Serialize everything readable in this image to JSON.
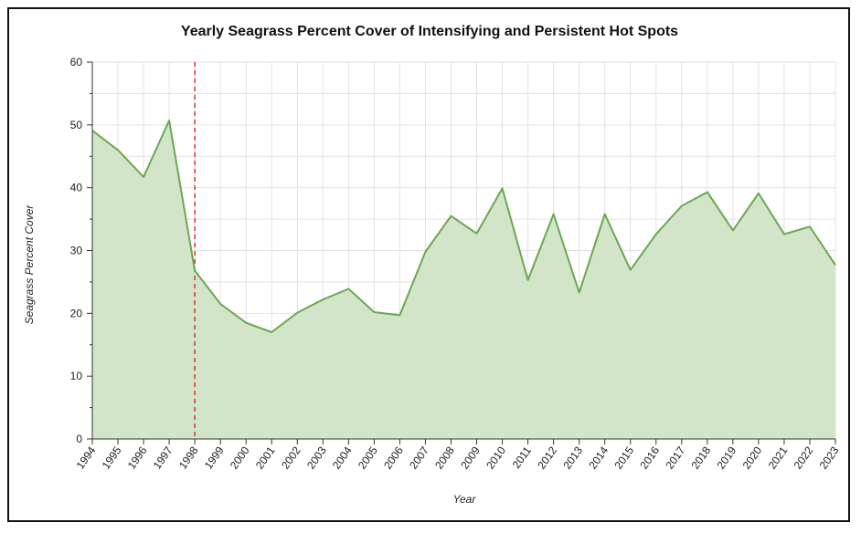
{
  "chart_data": {
    "type": "area",
    "title": "Yearly Seagrass Percent Cover of Intensifying and Persistent Hot Spots",
    "xlabel": "Year",
    "ylabel": "Seagrass Percent Cover",
    "ylim": [
      0,
      60
    ],
    "yticks": [
      0,
      10,
      20,
      30,
      40,
      50,
      60
    ],
    "x": [
      "1994",
      "1995",
      "1996",
      "1997",
      "1998",
      "1999",
      "2000",
      "2001",
      "2002",
      "2003",
      "2004",
      "2005",
      "2006",
      "2007",
      "2008",
      "2009",
      "2010",
      "2011",
      "2012",
      "2013",
      "2014",
      "2015",
      "2016",
      "2017",
      "2018",
      "2019",
      "2020",
      "2021",
      "2022",
      "2023"
    ],
    "series": [
      {
        "name": "Seagrass Percent Cover",
        "values": [
          49.1,
          46.0,
          41.7,
          50.7,
          26.8,
          21.5,
          18.5,
          17.0,
          20.1,
          22.2,
          23.9,
          20.2,
          19.7,
          29.8,
          35.5,
          32.7,
          39.9,
          25.3,
          35.8,
          23.3,
          35.8,
          26.9,
          32.6,
          37.1,
          39.3,
          33.2,
          39.1,
          32.6,
          33.8,
          27.7
        ]
      }
    ],
    "reference_line": {
      "x": "1998",
      "style": "dashed",
      "color": "#e03131"
    },
    "line_color": "#6aa84f",
    "fill_color": "#d2e5c9",
    "grid": true
  }
}
